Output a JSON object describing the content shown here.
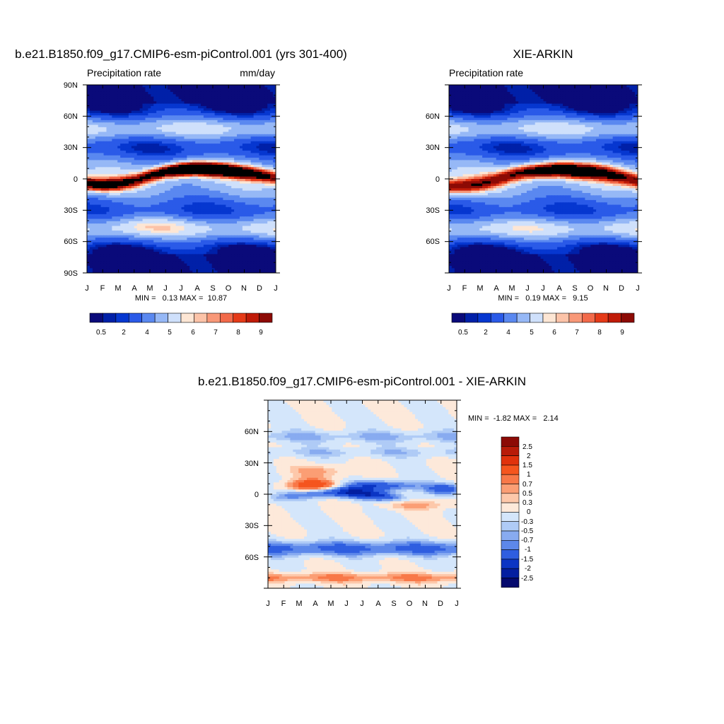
{
  "panels": [
    {
      "title": "b.e21.B1850.f09_g17.CMIP6-esm-piControl.001 (yrs 301-400)",
      "left_label": "Precipitation rate",
      "right_label": "mm/day",
      "stats": "MIN =   0.13 MAX =  10.87",
      "y_ticks": [
        "90N",
        "60N",
        "30N",
        "0",
        "30S",
        "60S",
        "90S"
      ],
      "x_ticks": [
        "J",
        "F",
        "M",
        "A",
        "M",
        "J",
        "J",
        "A",
        "S",
        "O",
        "N",
        "D",
        "J"
      ],
      "colorbar_labels": [
        "0.5",
        "2",
        "4",
        "5",
        "6",
        "7",
        "8",
        "9"
      ]
    },
    {
      "title": "XIE-ARKIN",
      "left_label": "Precipitation rate",
      "right_label": "",
      "stats": "MIN =   0.19 MAX =   9.15",
      "y_ticks": [
        "60N",
        "30N",
        "0",
        "30S",
        "60S"
      ],
      "x_ticks": [
        "J",
        "F",
        "M",
        "A",
        "M",
        "J",
        "J",
        "A",
        "S",
        "O",
        "N",
        "D",
        "J"
      ],
      "colorbar_labels": [
        "0.5",
        "2",
        "4",
        "5",
        "6",
        "7",
        "8",
        "9"
      ]
    },
    {
      "title": "b.e21.B1850.f09_g17.CMIP6-esm-piControl.001 - XIE-ARKIN",
      "left_label": "",
      "right_label": "",
      "stats": "MIN =  -1.82 MAX =   2.14",
      "y_ticks": [
        "60N",
        "30N",
        "0",
        "30S",
        "60S"
      ],
      "x_ticks": [
        "J",
        "F",
        "M",
        "A",
        "M",
        "J",
        "J",
        "A",
        "S",
        "O",
        "N",
        "D",
        "J"
      ],
      "colorbar_labels": [
        "2.5",
        "2",
        "1.5",
        "1",
        "0.7",
        "0.5",
        "0.3",
        "0",
        "-0.3",
        "-0.5",
        "-0.7",
        "-1",
        "-1.5",
        "-2",
        "-2.5"
      ]
    }
  ],
  "colors": {
    "precip_scale": [
      "#0a0a7a",
      "#0020a8",
      "#0637d0",
      "#2a5ae8",
      "#5a88f0",
      "#96b8f6",
      "#cfe0fb",
      "#fde6d4",
      "#fcc3a8",
      "#f89878",
      "#f26a4a",
      "#e53a18",
      "#c01b08",
      "#8c0a05"
    ],
    "diff_scale": [
      "#8c0a05",
      "#b81b08",
      "#e0320c",
      "#f5551e",
      "#f87848",
      "#fb9e74",
      "#fdc8aa",
      "#fde9da",
      "#d4e6fb",
      "#afcbf6",
      "#88abf0",
      "#5d88ea",
      "#2f5ee0",
      "#0b35c4",
      "#041fa0",
      "#050a6e"
    ]
  },
  "chart_data": [
    {
      "type": "heatmap",
      "title": "b.e21.B1850.f09_g17.CMIP6-esm-piControl.001 (yrs 301-400)",
      "field": "Precipitation rate",
      "units": "mm/day",
      "x": [
        "J",
        "F",
        "M",
        "A",
        "M",
        "J",
        "J",
        "A",
        "S",
        "O",
        "N",
        "D",
        "J"
      ],
      "y": [
        "90N",
        "60N",
        "30N",
        "0",
        "30S",
        "60S",
        "90S"
      ],
      "ylim": [
        -90,
        90
      ],
      "min": 0.13,
      "max": 10.87,
      "levels": [
        0.2,
        0.5,
        1,
        2,
        3,
        4,
        5,
        5.5,
        6,
        6.5,
        7,
        7.5,
        8,
        9
      ],
      "rainband_lat_by_month": [
        -5,
        -6,
        -5,
        -2,
        3,
        7,
        9,
        10,
        9,
        8,
        6,
        4,
        1
      ],
      "rainband_peak_by_month": [
        7.5,
        7.2,
        6.8,
        6.0,
        7.0,
        8.5,
        10.8,
        10.8,
        10.6,
        9.0,
        8.0,
        7.0,
        6.0
      ]
    },
    {
      "type": "heatmap",
      "title": "XIE-ARKIN",
      "field": "Precipitation rate",
      "x": [
        "J",
        "F",
        "M",
        "A",
        "M",
        "J",
        "J",
        "A",
        "S",
        "O",
        "N",
        "D",
        "J"
      ],
      "y": [
        "60N",
        "30N",
        "0",
        "30S",
        "60S"
      ],
      "ylim": [
        -90,
        90
      ],
      "min": 0.19,
      "max": 9.15,
      "levels": [
        0.2,
        0.5,
        1,
        2,
        3,
        4,
        5,
        5.5,
        6,
        6.5,
        7,
        7.5,
        8,
        9
      ],
      "rainband_lat_by_month": [
        -8,
        -7,
        -5,
        -1,
        4,
        7,
        8,
        9,
        8,
        7,
        5,
        2,
        -2
      ],
      "rainband_peak_by_month": [
        6.2,
        6.0,
        5.8,
        5.6,
        6.5,
        7.5,
        8.5,
        9.0,
        8.8,
        7.8,
        7.0,
        6.2,
        6.0
      ]
    },
    {
      "type": "heatmap",
      "title": "b.e21.B1850.f09_g17.CMIP6-esm-piControl.001 - XIE-ARKIN",
      "x": [
        "J",
        "F",
        "M",
        "A",
        "M",
        "J",
        "J",
        "A",
        "S",
        "O",
        "N",
        "D",
        "J"
      ],
      "y": [
        "60N",
        "30N",
        "0",
        "30S",
        "60S"
      ],
      "ylim": [
        -90,
        90
      ],
      "min": -1.82,
      "max": 2.14,
      "levels": [
        -2.5,
        -2,
        -1.5,
        -1,
        -0.7,
        -0.5,
        -0.3,
        0,
        0.3,
        0.5,
        0.7,
        1,
        1.5,
        2,
        2.5
      ]
    }
  ]
}
